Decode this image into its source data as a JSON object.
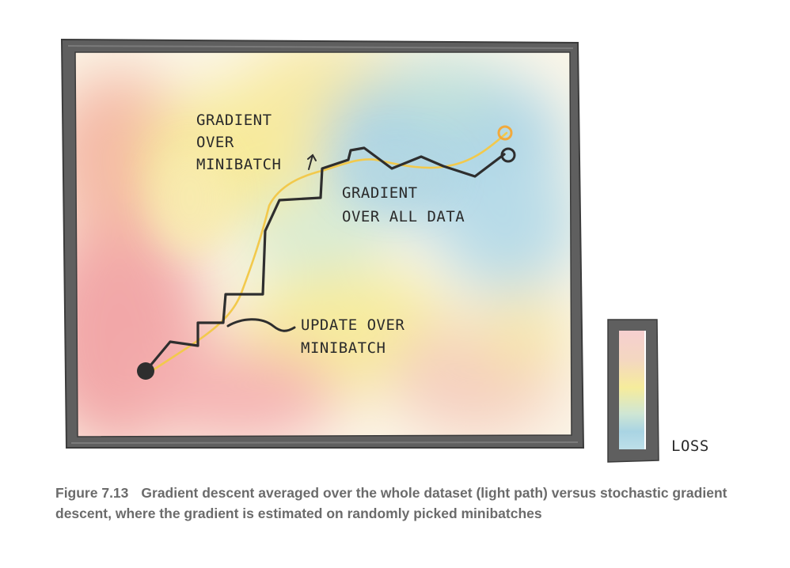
{
  "labels": {
    "gradient_over_minibatch": [
      "GRADIENT",
      "OVER",
      "MINIBATCH"
    ],
    "gradient_over_all_data": [
      "GRADIENT",
      "OVER ALL DATA"
    ],
    "update_over_minibatch": [
      "UPDATE OVER",
      "MINIBATCH"
    ],
    "loss": "LOSS"
  },
  "caption": {
    "figure_number": "Figure 7.13",
    "text": "Gradient descent averaged over the whole dataset (light path) versus stochastic gradient descent, where the gradient is estimated on randomly picked minibatches"
  },
  "colors": {
    "frame": "#5a5a5a",
    "minibatch_path": "#2e2e2e",
    "full_data_path": "#f2c94c",
    "end_full_data": "#f2a93b",
    "caption": "#6b6b6b"
  },
  "icons": {
    "start_point": "filled-dark-circle",
    "end_minibatch": "open-dark-circle",
    "end_full_data": "open-orange-circle",
    "label_arrow": "up-arrow"
  }
}
